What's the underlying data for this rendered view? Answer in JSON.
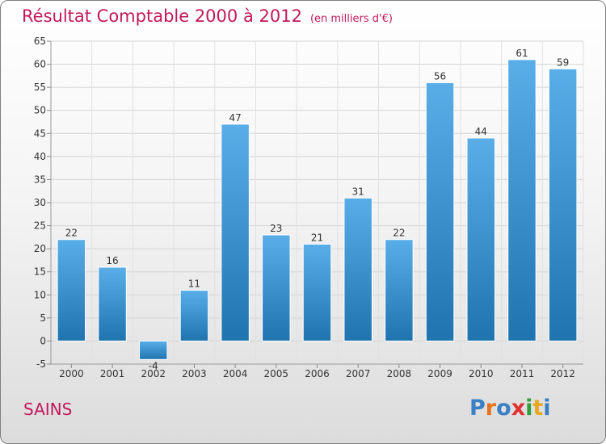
{
  "header": {
    "title": "Résultat Comptable 2000 à 2012",
    "unit": "(en milliers d'€)"
  },
  "footer": {
    "city": "SAINS",
    "logo_text": "Proxiti"
  },
  "colors": {
    "title": "#c2185b",
    "bar_top": "#5aaee8",
    "bar_bottom": "#1f74b0",
    "logo": [
      "#3a7fc4",
      "#e8731e",
      "#3a7fc4",
      "#e03030",
      "#2e9e3e",
      "#e8a81e",
      "#3a7fc4"
    ]
  },
  "chart_data": {
    "type": "bar",
    "title": "Résultat Comptable 2000 à 2012",
    "xlabel": "",
    "ylabel": "",
    "categories": [
      "2000",
      "2001",
      "2002",
      "2003",
      "2004",
      "2005",
      "2006",
      "2007",
      "2008",
      "2009",
      "2010",
      "2011",
      "2012"
    ],
    "values": [
      22,
      16,
      -4,
      11,
      47,
      23,
      21,
      31,
      22,
      56,
      44,
      61,
      59
    ],
    "data_labels": [
      "22",
      "16",
      "-4",
      "11",
      "47",
      "23",
      "21",
      "31",
      "22",
      "56",
      "44",
      "61",
      "59"
    ],
    "ylim": [
      -5,
      65
    ],
    "yticks": [
      -5,
      0,
      5,
      10,
      15,
      20,
      25,
      30,
      35,
      40,
      45,
      50,
      55,
      60,
      65
    ],
    "grid": true
  }
}
